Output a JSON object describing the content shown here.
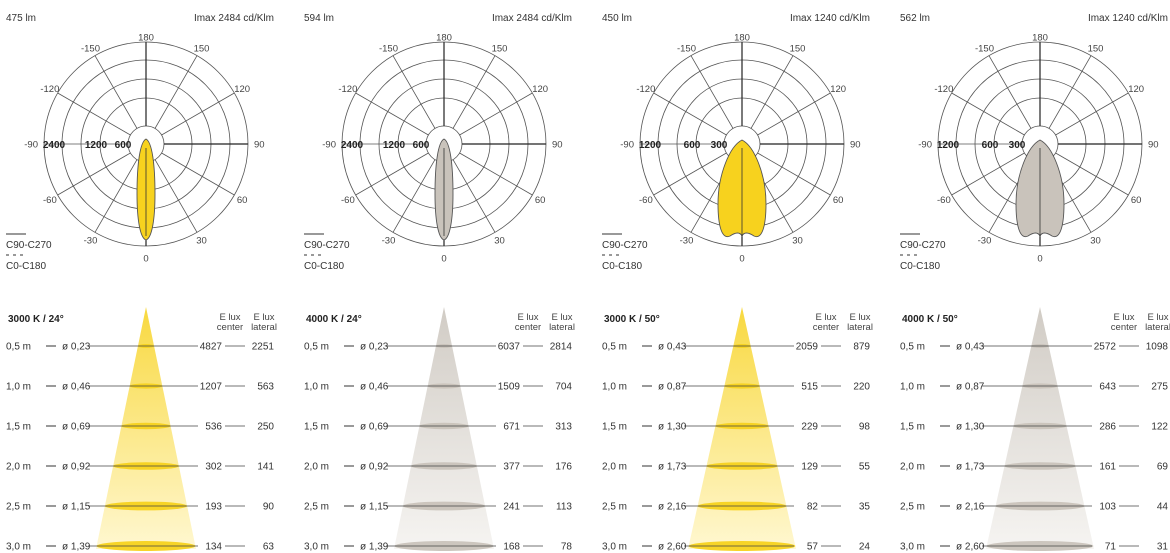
{
  "panels": [
    {
      "lumen": "475 lm",
      "imax": "Imax 2484 cd/Klm",
      "color": "#f7d21e",
      "ringLabels": [
        "2400",
        "1200",
        "600"
      ],
      "polar": {
        "type": "polar-lobe",
        "max_cd": 2484,
        "beam_half_deg": 12,
        "width_scale": 0.13
      },
      "legend": {
        "solid": "C90-C270",
        "dashed": "C0-C180"
      },
      "cone": {
        "title": "3000 K / 24°",
        "header_center": [
          "E lux",
          "center"
        ],
        "header_lateral": [
          "E lux",
          "lateral"
        ],
        "rows": [
          {
            "distance": "0,5 m",
            "diameter": "ø 0,23",
            "center": "4827",
            "lateral": "2251"
          },
          {
            "distance": "1,0 m",
            "diameter": "ø 0,46",
            "center": "1207",
            "lateral": "563"
          },
          {
            "distance": "1,5 m",
            "diameter": "ø 0,69",
            "center": "536",
            "lateral": "250"
          },
          {
            "distance": "2,0 m",
            "diameter": "ø 0,92",
            "center": "302",
            "lateral": "141"
          },
          {
            "distance": "2,5 m",
            "diameter": "ø 1,15",
            "center": "193",
            "lateral": "90"
          },
          {
            "distance": "3,0 m",
            "diameter": "ø 1,39",
            "center": "134",
            "lateral": "63"
          }
        ]
      }
    },
    {
      "lumen": "594 lm",
      "imax": "Imax 2484 cd/Klm",
      "color": "#c9c3bb",
      "ringLabels": [
        "2400",
        "1200",
        "600"
      ],
      "polar": {
        "type": "polar-lobe",
        "max_cd": 2484,
        "beam_half_deg": 12,
        "width_scale": 0.13
      },
      "legend": {
        "solid": "C90-C270",
        "dashed": "C0-C180"
      },
      "cone": {
        "title": "4000 K / 24°",
        "header_center": [
          "E lux",
          "center"
        ],
        "header_lateral": [
          "E lux",
          "lateral"
        ],
        "rows": [
          {
            "distance": "0,5 m",
            "diameter": "ø 0,23",
            "center": "6037",
            "lateral": "2814"
          },
          {
            "distance": "1,0 m",
            "diameter": "ø 0,46",
            "center": "1509",
            "lateral": "704"
          },
          {
            "distance": "1,5 m",
            "diameter": "ø 0,69",
            "center": "671",
            "lateral": "313"
          },
          {
            "distance": "2,0 m",
            "diameter": "ø 0,92",
            "center": "377",
            "lateral": "176"
          },
          {
            "distance": "2,5 m",
            "diameter": "ø 1,15",
            "center": "241",
            "lateral": "113"
          },
          {
            "distance": "3,0 m",
            "diameter": "ø 1,39",
            "center": "168",
            "lateral": "78"
          }
        ]
      }
    },
    {
      "lumen": "450 lm",
      "imax": "Imax 1240 cd/Klm",
      "color": "#f7d21e",
      "ringLabels": [
        "1200",
        "600",
        "300"
      ],
      "polar": {
        "type": "polar-lobe",
        "max_cd": 1240,
        "beam_half_deg": 25,
        "width_scale": 0.3
      },
      "legend": {
        "solid": "C90-C270",
        "dashed": "C0-C180"
      },
      "cone": {
        "title": "3000 K / 50°",
        "header_center": [
          "E lux",
          "center"
        ],
        "header_lateral": [
          "E lux",
          "lateral"
        ],
        "rows": [
          {
            "distance": "0,5 m",
            "diameter": "ø 0,43",
            "center": "2059",
            "lateral": "879"
          },
          {
            "distance": "1,0 m",
            "diameter": "ø 0,87",
            "center": "515",
            "lateral": "220"
          },
          {
            "distance": "1,5 m",
            "diameter": "ø 1,30",
            "center": "229",
            "lateral": "98"
          },
          {
            "distance": "2,0 m",
            "diameter": "ø 1,73",
            "center": "129",
            "lateral": "55"
          },
          {
            "distance": "2,5 m",
            "diameter": "ø 2,16",
            "center": "82",
            "lateral": "35"
          },
          {
            "distance": "3,0 m",
            "diameter": "ø 2,60",
            "center": "57",
            "lateral": "24"
          }
        ]
      }
    },
    {
      "lumen": "562 lm",
      "imax": "Imax 1240 cd/Klm",
      "color": "#c9c3bb",
      "ringLabels": [
        "1200",
        "600",
        "300"
      ],
      "polar": {
        "type": "polar-lobe",
        "max_cd": 1240,
        "beam_half_deg": 25,
        "width_scale": 0.3
      },
      "legend": {
        "solid": "C90-C270",
        "dashed": "C0-C180"
      },
      "cone": {
        "title": "4000 K / 50°",
        "header_center": [
          "E lux",
          "center"
        ],
        "header_lateral": [
          "E lux",
          "lateral"
        ],
        "rows": [
          {
            "distance": "0,5 m",
            "diameter": "ø 0,43",
            "center": "2572",
            "lateral": "1098"
          },
          {
            "distance": "1,0 m",
            "diameter": "ø 0,87",
            "center": "643",
            "lateral": "275"
          },
          {
            "distance": "1,5 m",
            "diameter": "ø 1,30",
            "center": "286",
            "lateral": "122"
          },
          {
            "distance": "2,0 m",
            "diameter": "ø 1,73",
            "center": "161",
            "lateral": "69"
          },
          {
            "distance": "2,5 m",
            "diameter": "ø 2,16",
            "center": "103",
            "lateral": "44"
          },
          {
            "distance": "3,0 m",
            "diameter": "ø 2,60",
            "center": "71",
            "lateral": "31"
          }
        ]
      }
    }
  ],
  "angleLabels": [
    "180",
    "150",
    "120",
    "90",
    "60",
    "30",
    "0",
    "-30",
    "-60",
    "-90",
    "-120",
    "-150"
  ]
}
